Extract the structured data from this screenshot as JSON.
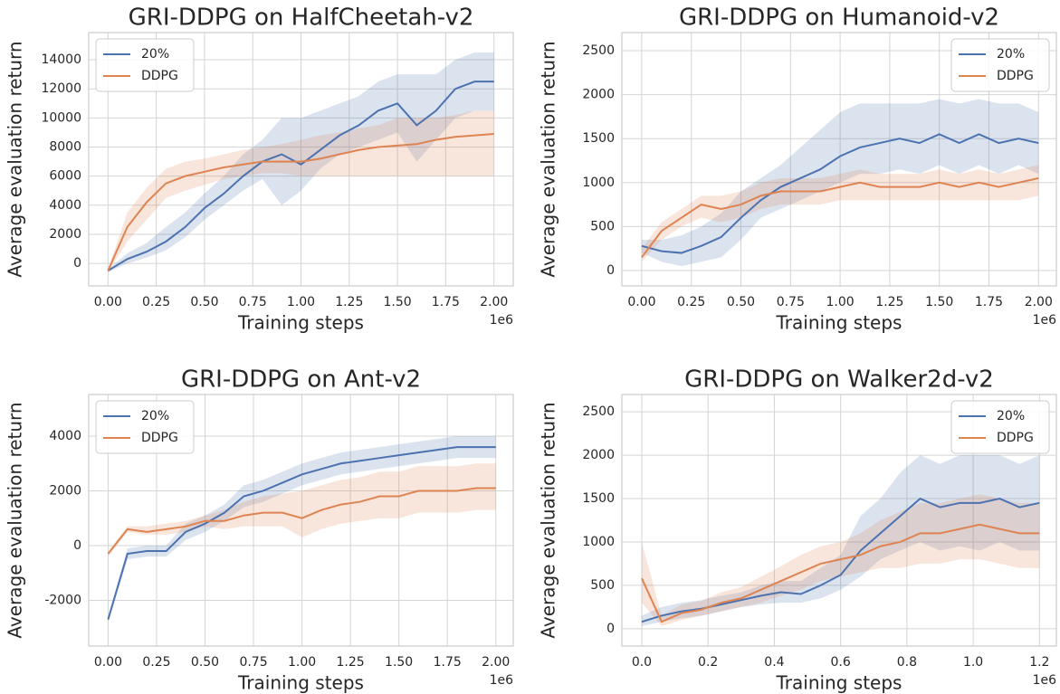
{
  "chart_data": [
    {
      "type": "line",
      "title": "GRI-DDPG on HalfCheetah-v2",
      "x_label": "Training steps",
      "y_label": "Average evaluation return",
      "x_offset_label": "1e6",
      "x": [
        0,
        0.1,
        0.2,
        0.3,
        0.4,
        0.5,
        0.6,
        0.7,
        0.8,
        0.9,
        1.0,
        1.1,
        1.2,
        1.3,
        1.4,
        1.5,
        1.6,
        1.7,
        1.8,
        1.9,
        2.0
      ],
      "series": [
        {
          "name": "20%",
          "color": "#4c72b0",
          "values": [
            -500,
            300,
            800,
            1500,
            2500,
            3800,
            4800,
            6000,
            7000,
            7500,
            6800,
            7800,
            8800,
            9500,
            10500,
            11000,
            9500,
            10500,
            12000,
            12500,
            12500
          ],
          "lower": [
            -600,
            0,
            400,
            900,
            1800,
            3000,
            4000,
            5000,
            5800,
            4000,
            5000,
            6500,
            7500,
            8000,
            8500,
            9000,
            7000,
            8500,
            10000,
            10500,
            10500
          ],
          "upper": [
            -400,
            700,
            1400,
            2500,
            3500,
            4800,
            6000,
            7500,
            8500,
            10000,
            10000,
            10500,
            11000,
            11500,
            12500,
            13000,
            13000,
            13000,
            14000,
            14500,
            14500
          ]
        },
        {
          "name": "DDPG",
          "color": "#dd8452",
          "values": [
            -500,
            2500,
            4200,
            5500,
            6000,
            6300,
            6600,
            6800,
            7000,
            7000,
            7000,
            7200,
            7500,
            7800,
            8000,
            8100,
            8200,
            8500,
            8700,
            8800,
            8900
          ],
          "lower": [
            -600,
            1500,
            3000,
            4500,
            5000,
            5400,
            5800,
            6000,
            6200,
            6200,
            6000,
            6000,
            6000,
            6000,
            6000,
            6000,
            6000,
            6000,
            6000,
            6000,
            6000
          ],
          "upper": [
            -400,
            3500,
            5200,
            6500,
            7000,
            7200,
            7500,
            7800,
            8000,
            8200,
            8500,
            8800,
            9000,
            9300,
            9500,
            10000,
            10000,
            10000,
            10200,
            10500,
            10500
          ]
        }
      ],
      "xlim": [
        -0.1,
        2.1
      ],
      "ylim": [
        -1550,
        15870
      ],
      "xticks": [
        {
          "value": 0,
          "label": "0.00"
        },
        0.25,
        {
          "value": 0.5,
          "label": "0.50"
        },
        0.75,
        {
          "value": 1,
          "label": "1.00"
        },
        1.25,
        {
          "value": 1.5,
          "label": "1.50"
        },
        1.75,
        {
          "value": 2,
          "label": "2.00"
        }
      ],
      "yticks": [
        0,
        2000,
        4000,
        6000,
        8000,
        10000,
        12000,
        14000
      ],
      "legend": "upper left",
      "grid": true
    },
    {
      "type": "line",
      "title": "GRI-DDPG on Humanoid-v2",
      "x_label": "Training steps",
      "y_label": "Average evaluation return",
      "x_offset_label": "1e6",
      "x": [
        0,
        0.1,
        0.2,
        0.3,
        0.4,
        0.5,
        0.6,
        0.7,
        0.8,
        0.9,
        1.0,
        1.1,
        1.2,
        1.3,
        1.4,
        1.5,
        1.6,
        1.7,
        1.8,
        1.9,
        2.0
      ],
      "series": [
        {
          "name": "20%",
          "color": "#4c72b0",
          "values": [
            280,
            220,
            200,
            280,
            380,
            600,
            800,
            950,
            1050,
            1150,
            1300,
            1400,
            1450,
            1500,
            1450,
            1550,
            1450,
            1550,
            1450,
            1500,
            1450
          ],
          "lower": [
            200,
            100,
            50,
            100,
            150,
            350,
            600,
            700,
            800,
            900,
            1000,
            1100,
            1100,
            1150,
            1100,
            1200,
            1100,
            1200,
            1100,
            1200,
            1100
          ],
          "upper": [
            350,
            350,
            400,
            500,
            650,
            900,
            1050,
            1200,
            1400,
            1600,
            1800,
            1900,
            1900,
            1900,
            1900,
            1950,
            1900,
            1950,
            1900,
            1900,
            1800
          ]
        },
        {
          "name": "DDPG",
          "color": "#dd8452",
          "values": [
            150,
            450,
            600,
            750,
            700,
            750,
            850,
            900,
            900,
            900,
            950,
            1000,
            950,
            950,
            950,
            1000,
            950,
            1000,
            950,
            1000,
            1050
          ],
          "lower": [
            100,
            350,
            500,
            600,
            550,
            600,
            700,
            750,
            750,
            750,
            800,
            800,
            800,
            800,
            800,
            800,
            800,
            800,
            800,
            800,
            850
          ],
          "upper": [
            250,
            550,
            700,
            850,
            850,
            900,
            1000,
            1050,
            1050,
            1050,
            1100,
            1150,
            1100,
            1100,
            1100,
            1150,
            1100,
            1150,
            1100,
            1150,
            1200
          ]
        }
      ],
      "xlim": [
        -0.1,
        2.09
      ],
      "ylim": [
        -175,
        2706
      ],
      "xticks": [
        {
          "value": 0,
          "label": "0.00"
        },
        0.25,
        {
          "value": 0.5,
          "label": "0.50"
        },
        0.75,
        {
          "value": 1,
          "label": "1.00"
        },
        1.25,
        {
          "value": 1.5,
          "label": "1.50"
        },
        1.75,
        {
          "value": 2,
          "label": "2.00"
        }
      ],
      "yticks": [
        0,
        500,
        1000,
        1500,
        2000,
        2500
      ],
      "legend": "upper right",
      "grid": true
    },
    {
      "type": "line",
      "title": "GRI-DDPG on Ant-v2",
      "x_label": "Training steps",
      "y_label": "Average evaluation return",
      "x_offset_label": "1e6",
      "x": [
        0,
        0.1,
        0.2,
        0.3,
        0.4,
        0.5,
        0.6,
        0.7,
        0.8,
        0.9,
        1.0,
        1.1,
        1.2,
        1.3,
        1.4,
        1.5,
        1.6,
        1.7,
        1.8,
        1.9,
        2.0
      ],
      "series": [
        {
          "name": "20%",
          "color": "#4c72b0",
          "values": [
            -2700,
            -300,
            -200,
            -200,
            500,
            800,
            1200,
            1800,
            2000,
            2300,
            2600,
            2800,
            3000,
            3100,
            3200,
            3300,
            3400,
            3500,
            3600,
            3600,
            3600
          ],
          "lower": [
            -2800,
            -500,
            -400,
            -400,
            200,
            500,
            900,
            1400,
            1600,
            1900,
            2200,
            2400,
            2600,
            2700,
            2800,
            2900,
            3000,
            3100,
            3200,
            3200,
            3200
          ],
          "upper": [
            -2600,
            -100,
            0,
            0,
            800,
            1100,
            1500,
            2200,
            2400,
            2700,
            3000,
            3200,
            3400,
            3500,
            3600,
            3700,
            3800,
            3900,
            4000,
            4000,
            4000
          ]
        },
        {
          "name": "DDPG",
          "color": "#dd8452",
          "values": [
            -300,
            600,
            500,
            600,
            700,
            900,
            900,
            1100,
            1200,
            1200,
            1000,
            1300,
            1500,
            1600,
            1800,
            1800,
            2000,
            2000,
            2000,
            2100,
            2100
          ],
          "lower": [
            -400,
            500,
            400,
            400,
            500,
            700,
            600,
            700,
            700,
            700,
            300,
            600,
            800,
            900,
            1000,
            1000,
            1200,
            1200,
            1200,
            1300,
            1300
          ],
          "upper": [
            -200,
            700,
            700,
            800,
            900,
            1100,
            1300,
            1600,
            1800,
            1900,
            2000,
            2200,
            2400,
            2500,
            2700,
            2700,
            2900,
            2900,
            2900,
            3000,
            3000
          ]
        }
      ],
      "xlim": [
        -0.1,
        2.09
      ],
      "ylim": [
        -3670,
        5520
      ],
      "xticks": [
        {
          "value": 0,
          "label": "0.00"
        },
        0.25,
        {
          "value": 0.5,
          "label": "0.50"
        },
        0.75,
        {
          "value": 1,
          "label": "1.00"
        },
        1.25,
        {
          "value": 1.5,
          "label": "1.50"
        },
        1.75,
        {
          "value": 2,
          "label": "2.00"
        }
      ],
      "yticks": [
        -2000,
        0,
        2000,
        4000
      ],
      "legend": "upper left",
      "grid": true
    },
    {
      "type": "line",
      "title": "GRI-DDPG on Walker2d-v2",
      "x_label": "Training steps",
      "y_label": "Average evaluation return",
      "x_offset_label": "1e6",
      "x": [
        0,
        0.06,
        0.12,
        0.18,
        0.24,
        0.3,
        0.36,
        0.42,
        0.48,
        0.54,
        0.6,
        0.66,
        0.72,
        0.78,
        0.84,
        0.9,
        0.96,
        1.02,
        1.08,
        1.14,
        1.2
      ],
      "series": [
        {
          "name": "20%",
          "color": "#4c72b0",
          "values": [
            80,
            150,
            200,
            230,
            280,
            330,
            380,
            420,
            400,
            500,
            620,
            900,
            1100,
            1300,
            1500,
            1400,
            1450,
            1450,
            1500,
            1400,
            1450
          ],
          "lower": [
            30,
            80,
            120,
            150,
            200,
            250,
            280,
            300,
            300,
            350,
            450,
            600,
            800,
            900,
            1000,
            900,
            950,
            900,
            1000,
            900,
            900
          ],
          "upper": [
            150,
            250,
            300,
            330,
            380,
            420,
            500,
            550,
            550,
            700,
            850,
            1300,
            1500,
            1800,
            2000,
            1900,
            2000,
            2000,
            2000,
            1900,
            2000
          ]
        },
        {
          "name": "DDPG",
          "color": "#dd8452",
          "values": [
            580,
            80,
            180,
            220,
            300,
            350,
            450,
            550,
            650,
            750,
            800,
            850,
            950,
            1000,
            1100,
            1100,
            1150,
            1200,
            1150,
            1100,
            1100
          ],
          "lower": [
            300,
            30,
            100,
            150,
            200,
            250,
            300,
            380,
            450,
            550,
            600,
            650,
            700,
            700,
            750,
            750,
            800,
            800,
            750,
            700,
            700
          ],
          "upper": [
            1000,
            150,
            280,
            320,
            420,
            480,
            600,
            720,
            850,
            950,
            1000,
            1100,
            1250,
            1350,
            1450,
            1450,
            1500,
            1550,
            1500,
            1450,
            1450
          ]
        }
      ],
      "xlim": [
        -0.06,
        1.251
      ],
      "ylim": [
        -200,
        2700
      ],
      "xticks": [
        {
          "value": 0,
          "label": "0.0"
        },
        0.2,
        0.4,
        0.6,
        0.8,
        {
          "value": 1,
          "label": "1.0"
        },
        1.2
      ],
      "yticks": [
        0,
        500,
        1000,
        1500,
        2000,
        2500
      ],
      "legend": "upper right",
      "grid": true
    }
  ]
}
